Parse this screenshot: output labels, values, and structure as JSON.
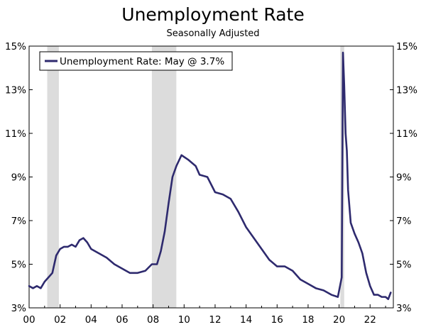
{
  "chart_data": {
    "type": "line",
    "title": "Unemployment Rate",
    "subtitle": "Seasonally Adjusted",
    "legend": {
      "label": "Unemployment Rate: May @ 3.7%",
      "placement": "top-left"
    },
    "ylim": [
      3,
      15
    ],
    "xlim": [
      2000,
      2023.5
    ],
    "y_ticks": [
      3,
      5,
      7,
      9,
      11,
      13,
      15
    ],
    "y_tick_labels": [
      "3%",
      "5%",
      "7%",
      "9%",
      "11%",
      "13%",
      "15%"
    ],
    "y_tick_labels_right": [
      "3%",
      "5%",
      "7%",
      "9%",
      "11%",
      "13%",
      "15%"
    ],
    "x_ticks": [
      2000,
      2002,
      2004,
      2006,
      2008,
      2010,
      2012,
      2014,
      2016,
      2018,
      2020,
      2022
    ],
    "x_tick_labels": [
      "00",
      "02",
      "04",
      "06",
      "08",
      "10",
      "12",
      "14",
      "16",
      "18",
      "20",
      "22"
    ],
    "grid": false,
    "recessions": [
      {
        "start": 2001.17,
        "end": 2001.92
      },
      {
        "start": 2007.92,
        "end": 2009.5
      },
      {
        "start": 2020.08,
        "end": 2020.33
      }
    ],
    "colors": {
      "line": "#2e2a6e",
      "recession": "#dcdcdc"
    },
    "series": [
      {
        "name": "Unemployment Rate",
        "x": [
          2000.0,
          2000.25,
          2000.5,
          2000.75,
          2001.0,
          2001.25,
          2001.5,
          2001.75,
          2002.0,
          2002.25,
          2002.5,
          2002.75,
          2003.0,
          2003.25,
          2003.5,
          2003.75,
          2004.0,
          2004.5,
          2005.0,
          2005.5,
          2006.0,
          2006.5,
          2007.0,
          2007.5,
          2007.92,
          2008.25,
          2008.5,
          2008.75,
          2009.0,
          2009.25,
          2009.5,
          2009.83,
          2010.25,
          2010.75,
          2011.0,
          2011.5,
          2012.0,
          2012.5,
          2013.0,
          2013.5,
          2014.0,
          2014.5,
          2015.0,
          2015.5,
          2016.0,
          2016.5,
          2017.0,
          2017.5,
          2018.0,
          2018.5,
          2019.0,
          2019.5,
          2019.92,
          2020.17,
          2020.25,
          2020.33,
          2020.42,
          2020.5,
          2020.58,
          2020.75,
          2021.0,
          2021.25,
          2021.5,
          2021.75,
          2022.0,
          2022.25,
          2022.5,
          2022.75,
          2023.0,
          2023.17,
          2023.33
        ],
        "values": [
          4.0,
          3.9,
          4.0,
          3.9,
          4.2,
          4.4,
          4.6,
          5.4,
          5.7,
          5.8,
          5.8,
          5.9,
          5.8,
          6.1,
          6.2,
          6.0,
          5.7,
          5.5,
          5.3,
          5.0,
          4.8,
          4.6,
          4.6,
          4.7,
          5.0,
          5.0,
          5.6,
          6.5,
          7.8,
          9.0,
          9.5,
          10.0,
          9.8,
          9.5,
          9.1,
          9.0,
          8.3,
          8.2,
          8.0,
          7.4,
          6.7,
          6.2,
          5.7,
          5.2,
          4.9,
          4.9,
          4.7,
          4.3,
          4.1,
          3.9,
          3.8,
          3.6,
          3.5,
          4.4,
          14.7,
          13.2,
          11.0,
          10.2,
          8.4,
          6.9,
          6.4,
          6.0,
          5.5,
          4.6,
          4.0,
          3.6,
          3.6,
          3.5,
          3.5,
          3.4,
          3.7
        ]
      }
    ]
  }
}
